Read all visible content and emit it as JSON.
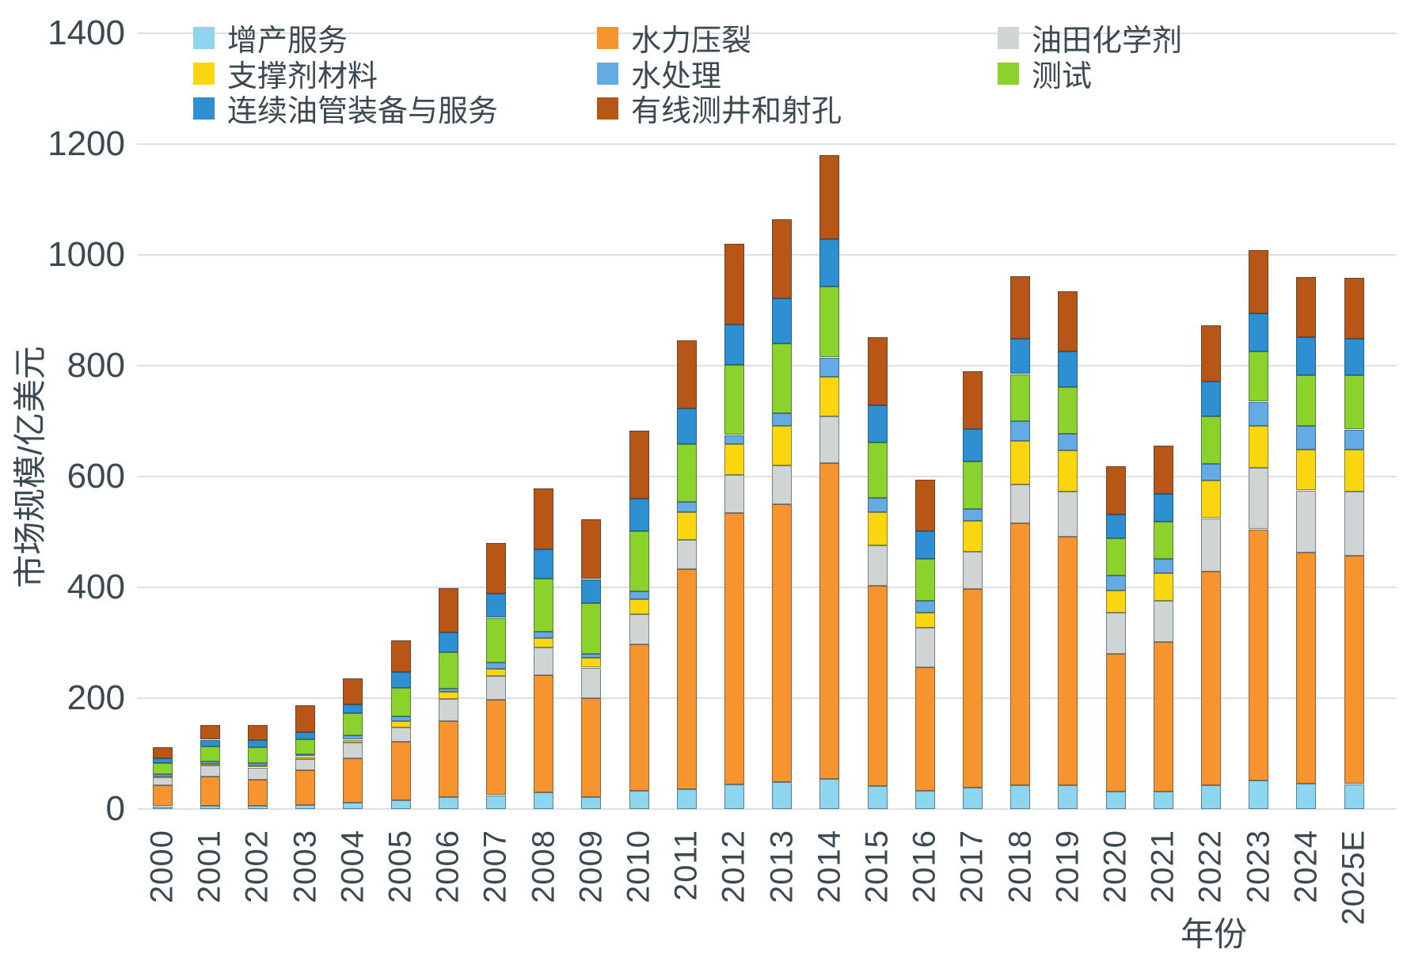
{
  "chart_data": {
    "type": "bar",
    "stacked": true,
    "xlabel": "年份",
    "ylabel": "市场规模/亿美元",
    "ylim": [
      0,
      1400
    ],
    "grid": true,
    "legend_position": "top",
    "ytick_labels": [
      "0",
      "200",
      "400",
      "600",
      "800",
      "1000",
      "1200",
      "1400"
    ],
    "categories": [
      "2000",
      "2001",
      "2002",
      "2003",
      "2004",
      "2005",
      "2006",
      "2007",
      "2008",
      "2009",
      "2010",
      "2011",
      "2012",
      "2013",
      "2014",
      "2015",
      "2016",
      "2017",
      "2018",
      "2019",
      "2020",
      "2021",
      "2022",
      "2023",
      "2024",
      "2025E"
    ],
    "series": [
      {
        "name": "增产服务",
        "color": "#8ed5ef",
        "values": [
          5,
          6,
          6,
          7,
          11,
          16,
          22,
          25,
          30,
          21,
          33,
          36,
          44,
          48,
          54,
          41,
          33,
          38,
          43,
          43,
          31,
          32,
          43,
          52,
          46,
          45
        ]
      },
      {
        "name": "水力压裂",
        "color": "#f6952f",
        "values": [
          38,
          52,
          47,
          63,
          81,
          105,
          137,
          172,
          211,
          179,
          264,
          397,
          490,
          502,
          570,
          362,
          223,
          359,
          473,
          448,
          249,
          270,
          386,
          453,
          417,
          412
        ]
      },
      {
        "name": "油田化学剂",
        "color": "#d0d5d3",
        "values": [
          14,
          20,
          22,
          20,
          28,
          26,
          40,
          43,
          51,
          55,
          54,
          53,
          69,
          70,
          85,
          73,
          71,
          67,
          70,
          82,
          74,
          74,
          96,
          111,
          112,
          116
        ]
      },
      {
        "name": "支撑剂材料",
        "color": "#fad610",
        "values": [
          2,
          3,
          3,
          5,
          5,
          11,
          13,
          13,
          16,
          18,
          27,
          50,
          55,
          72,
          71,
          60,
          27,
          56,
          79,
          74,
          40,
          50,
          68,
          76,
          73,
          75
        ]
      },
      {
        "name": "水处理",
        "color": "#64abe4",
        "values": [
          4,
          5,
          5,
          4,
          8,
          9,
          5,
          11,
          12,
          7,
          15,
          18,
          17,
          23,
          35,
          25,
          22,
          22,
          35,
          30,
          27,
          25,
          30,
          43,
          44,
          37
        ]
      },
      {
        "name": "测试",
        "color": "#8bd32c",
        "values": [
          20,
          27,
          29,
          27,
          40,
          51,
          66,
          81,
          96,
          92,
          109,
          105,
          127,
          125,
          128,
          100,
          75,
          85,
          85,
          84,
          67,
          67,
          85,
          91,
          91,
          98
        ]
      },
      {
        "name": "连续油管装备与服务",
        "color": "#2e8fd1",
        "values": [
          8,
          12,
          12,
          12,
          16,
          29,
          36,
          43,
          53,
          43,
          58,
          64,
          73,
          81,
          85,
          67,
          51,
          59,
          63,
          65,
          43,
          51,
          64,
          68,
          68,
          66
        ]
      },
      {
        "name": "有线测井和射孔",
        "color": "#b85617",
        "values": [
          21,
          26,
          28,
          49,
          47,
          58,
          79,
          92,
          110,
          108,
          123,
          123,
          145,
          144,
          152,
          124,
          93,
          104,
          113,
          109,
          87,
          87,
          101,
          114,
          109,
          109
        ]
      }
    ]
  }
}
